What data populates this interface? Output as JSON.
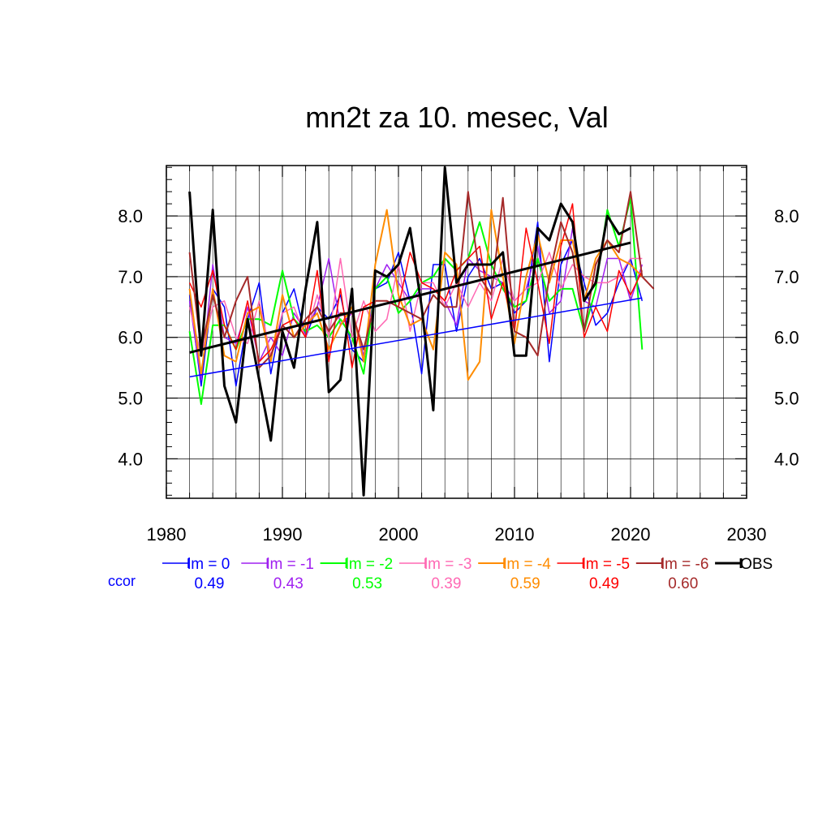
{
  "chart_data": {
    "type": "line",
    "title": "mn2t za 10. mesec, Val",
    "xlim": [
      1980,
      2030
    ],
    "ylim": [
      3.35,
      8.83
    ],
    "x_ticks": [
      1980,
      1990,
      2000,
      2010,
      2020,
      2030
    ],
    "x_tick_labels": [
      "1980",
      "1990",
      "2000",
      "2010",
      "2020",
      "2030"
    ],
    "y_ticks": [
      4.0,
      5.0,
      6.0,
      7.0,
      8.0
    ],
    "y_tick_labels": [
      "4.0",
      "5.0",
      "6.0",
      "7.0",
      "8.0"
    ],
    "grid": true,
    "ccor_label": "ccor",
    "series": [
      {
        "name": "lm = 0",
        "color": "#0000ff",
        "ccor": "0.49",
        "width": 1.5,
        "x": [
          1982,
          1983,
          1984,
          1985,
          1986,
          1987,
          1988,
          1989,
          1990,
          1991,
          1992,
          1993,
          1994,
          1995,
          1996,
          1997,
          1998,
          1999,
          2000,
          2001,
          2002,
          2003,
          2004,
          2005,
          2006,
          2007,
          2008,
          2009,
          2010,
          2011,
          2012,
          2013,
          2014,
          2015,
          2016,
          2017,
          2018,
          2019,
          2020,
          2021
        ],
        "y": [
          6.7,
          5.2,
          6.8,
          6.5,
          5.2,
          6.3,
          6.9,
          5.4,
          6.4,
          6.8,
          6.0,
          6.5,
          6.3,
          6.7,
          5.8,
          5.6,
          6.8,
          6.9,
          7.4,
          6.6,
          5.4,
          7.2,
          7.2,
          6.1,
          7.0,
          7.3,
          6.8,
          6.9,
          6.4,
          6.6,
          7.9,
          5.6,
          7.2,
          7.6,
          6.9,
          6.2,
          6.4,
          6.9,
          7.3,
          6.6
        ]
      },
      {
        "name": "lm = -1",
        "color": "#a020f0",
        "ccor": "0.43",
        "width": 1.5,
        "x": [
          1982,
          1983,
          1984,
          1985,
          1986,
          1987,
          1988,
          1989,
          1990,
          1991,
          1992,
          1993,
          1994,
          1995,
          1996,
          1997,
          1998,
          1999,
          2000,
          2001,
          2002,
          2003,
          2004,
          2005,
          2006,
          2007,
          2008,
          2009,
          2010,
          2011,
          2012,
          2013,
          2014,
          2015,
          2016,
          2017,
          2018,
          2019,
          2020,
          2021
        ],
        "y": [
          6.6,
          5.3,
          7.2,
          6.0,
          5.9,
          6.5,
          5.6,
          6.0,
          5.7,
          6.4,
          6.1,
          6.5,
          7.3,
          6.2,
          6.4,
          5.7,
          6.8,
          7.2,
          6.9,
          6.6,
          6.8,
          6.8,
          6.6,
          6.2,
          7.3,
          7.1,
          7.0,
          6.9,
          6.6,
          6.8,
          7.5,
          6.4,
          6.6,
          7.8,
          6.6,
          6.5,
          7.3,
          7.3,
          6.6,
          7.2
        ]
      },
      {
        "name": "lm = -2",
        "color": "#00ff00",
        "ccor": "0.53",
        "width": 2.0,
        "x": [
          1982,
          1983,
          1984,
          1985,
          1986,
          1987,
          1988,
          1989,
          1990,
          1991,
          1992,
          1993,
          1994,
          1995,
          1996,
          1997,
          1998,
          1999,
          2000,
          2001,
          2002,
          2003,
          2004,
          2005,
          2006,
          2007,
          2008,
          2009,
          2010,
          2011,
          2012,
          2013,
          2014,
          2015,
          2016,
          2017,
          2018,
          2019,
          2020,
          2021
        ],
        "y": [
          6.1,
          4.9,
          6.2,
          6.2,
          5.8,
          6.3,
          6.3,
          6.2,
          7.1,
          6.3,
          6.1,
          6.2,
          6.0,
          6.3,
          6.0,
          5.4,
          6.8,
          7.0,
          6.4,
          6.6,
          6.9,
          7.0,
          7.3,
          7.1,
          7.3,
          7.9,
          7.2,
          6.8,
          6.5,
          6.6,
          7.3,
          6.6,
          6.8,
          6.8,
          6.1,
          6.8,
          8.1,
          7.5,
          8.3,
          5.8
        ]
      },
      {
        "name": "lm = -3",
        "color": "#ff69b4",
        "ccor": "0.39",
        "width": 1.5,
        "x": [
          1982,
          1983,
          1984,
          1985,
          1986,
          1987,
          1988,
          1989,
          1990,
          1991,
          1992,
          1993,
          1994,
          1995,
          1996,
          1997,
          1998,
          1999,
          2000,
          2001,
          2002,
          2003,
          2004,
          2005,
          2006,
          2007,
          2008,
          2009,
          2010,
          2011,
          2012,
          2013,
          2014,
          2015,
          2016,
          2017,
          2018,
          2019,
          2020,
          2021
        ],
        "y": [
          6.5,
          5.7,
          6.5,
          6.6,
          6.0,
          5.9,
          6.6,
          5.7,
          6.4,
          6.5,
          6.0,
          6.7,
          6.0,
          7.3,
          6.0,
          6.6,
          6.1,
          6.3,
          7.2,
          6.1,
          6.9,
          6.9,
          6.5,
          6.9,
          6.5,
          6.9,
          6.6,
          7.3,
          6.6,
          6.8,
          6.9,
          7.4,
          6.8,
          7.2,
          7.0,
          6.9,
          6.9,
          7.0,
          7.3,
          7.3
        ]
      },
      {
        "name": "lm = -4",
        "color": "#ff8c00",
        "ccor": "0.59",
        "width": 2.0,
        "x": [
          1982,
          1983,
          1984,
          1985,
          1986,
          1987,
          1988,
          1989,
          1990,
          1991,
          1992,
          1993,
          1994,
          1995,
          1996,
          1997,
          1998,
          1999,
          2000,
          2001,
          2002,
          2003,
          2004,
          2005,
          2006,
          2007,
          2008,
          2009,
          2010,
          2011,
          2012,
          2013,
          2014,
          2015,
          2016,
          2017,
          2018,
          2019,
          2020,
          2021
        ],
        "y": [
          6.8,
          5.4,
          6.8,
          5.7,
          5.6,
          6.4,
          6.5,
          5.6,
          6.7,
          6.0,
          6.2,
          6.4,
          5.8,
          6.2,
          6.5,
          5.6,
          7.2,
          8.1,
          6.7,
          6.2,
          6.3,
          5.8,
          7.4,
          7.2,
          5.3,
          5.6,
          8.1,
          7.0,
          5.9,
          7.0,
          7.7,
          6.9,
          7.6,
          7.6,
          6.6,
          7.3,
          7.6,
          7.3,
          7.2,
          7.0
        ]
      },
      {
        "name": "lm = -5",
        "color": "#ff0000",
        "ccor": "0.49",
        "width": 1.5,
        "x": [
          1982,
          1983,
          1984,
          1985,
          1986,
          1987,
          1988,
          1989,
          1990,
          1991,
          1992,
          1993,
          1994,
          1995,
          1996,
          1997,
          1998,
          1999,
          2000,
          2001,
          2002,
          2003,
          2004,
          2005,
          2006,
          2007,
          2008,
          2009,
          2010,
          2011,
          2012,
          2013,
          2014,
          2015,
          2016,
          2017,
          2018,
          2019,
          2020,
          2021
        ],
        "y": [
          6.9,
          6.5,
          7.1,
          6.2,
          5.8,
          6.6,
          5.6,
          5.8,
          6.2,
          6.3,
          6.0,
          7.1,
          5.6,
          6.8,
          5.5,
          6.5,
          6.6,
          6.6,
          6.5,
          7.4,
          6.9,
          6.8,
          6.6,
          7.1,
          7.3,
          7.5,
          6.3,
          6.9,
          6.1,
          7.8,
          6.9,
          5.9,
          7.5,
          8.2,
          6.0,
          6.5,
          6.1,
          7.1,
          6.7,
          7.1
        ]
      },
      {
        "name": "lm = -6",
        "color": "#a52a2a",
        "ccor": "0.60",
        "width": 2.0,
        "x": [
          1982,
          1983,
          1984,
          1985,
          1986,
          1987,
          1988,
          1989,
          1990,
          1991,
          1992,
          1993,
          1994,
          1995,
          1996,
          1997,
          1998,
          1999,
          2000,
          2001,
          2002,
          2003,
          2004,
          2005,
          2006,
          2007,
          2008,
          2009,
          2010,
          2011,
          2012,
          2013,
          2014,
          2015,
          2016,
          2017,
          2018,
          2019,
          2020,
          2021,
          2022
        ],
        "y": [
          7.4,
          5.8,
          6.7,
          6.0,
          6.6,
          7.0,
          5.5,
          5.7,
          6.2,
          6.0,
          6.3,
          6.5,
          6.1,
          6.4,
          6.4,
          5.8,
          6.6,
          6.6,
          6.5,
          6.4,
          6.3,
          6.7,
          6.5,
          6.5,
          8.4,
          7.0,
          6.7,
          8.3,
          6.1,
          6.0,
          5.7,
          7.0,
          7.9,
          7.4,
          6.1,
          7.2,
          7.6,
          7.4,
          8.4,
          7.0,
          6.8
        ]
      },
      {
        "name": "OBS",
        "color": "#000000",
        "ccor": "",
        "width": 3.0,
        "x": [
          1982,
          1983,
          1984,
          1985,
          1986,
          1987,
          1988,
          1989,
          1990,
          1991,
          1992,
          1993,
          1994,
          1995,
          1996,
          1997,
          1998,
          1999,
          2000,
          2001,
          2002,
          2003,
          2004,
          2005,
          2006,
          2007,
          2008,
          2009,
          2010,
          2011,
          2012,
          2013,
          2014,
          2015,
          2016,
          2017,
          2018,
          2019,
          2020
        ],
        "y": [
          8.4,
          5.7,
          8.1,
          5.2,
          4.6,
          6.3,
          5.3,
          4.3,
          6.1,
          5.5,
          6.8,
          7.9,
          5.1,
          5.3,
          6.8,
          3.4,
          7.1,
          7.0,
          7.2,
          7.8,
          6.5,
          4.8,
          8.8,
          6.9,
          7.2,
          7.2,
          7.2,
          7.4,
          5.7,
          5.7,
          7.8,
          7.6,
          8.2,
          7.9,
          6.6,
          6.9,
          8.0,
          7.7,
          7.8
        ]
      }
    ],
    "trend_lines": [
      {
        "name": "lm = 0 trend",
        "color": "#0000ff",
        "x": [
          1982,
          2021
        ],
        "y": [
          5.35,
          6.65
        ],
        "width": 1.5
      },
      {
        "name": "OBS trend",
        "color": "#000000",
        "x": [
          1982,
          2020
        ],
        "y": [
          5.75,
          7.56
        ],
        "width": 3.0
      }
    ]
  }
}
